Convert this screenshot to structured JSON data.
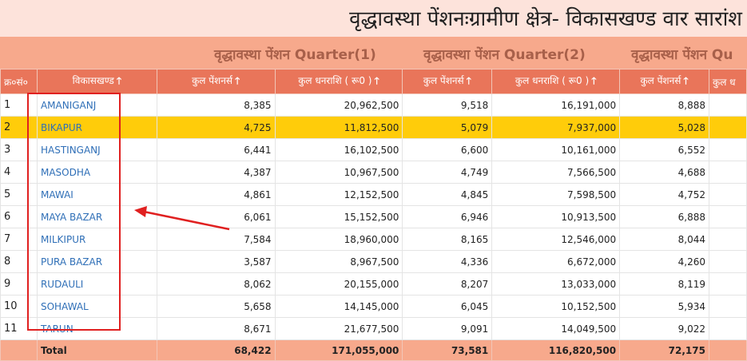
{
  "title": "वृद्धावस्था पेंशनःग्रामीण क्षेत्र- विकासखण्ड वार सारांश",
  "quarters": [
    "वृद्धावस्था पेंशन Quarter(1)",
    "वृद्धावस्था पेंशन Quarter(2)",
    "वृद्धावस्था पेंशन Qu"
  ],
  "headers": {
    "sn": "क्र०सं०",
    "block": "विकासखण्ड",
    "pensioners": "कुल पेंशनर्स",
    "amount": "कुल धनराशि ( रू0 )",
    "amount_cut": "कुल ध"
  },
  "icons": {
    "sort": "arrow-up-icon"
  },
  "rows": [
    {
      "sn": "1",
      "block": "AMANIGANJ",
      "q1p": "8,385",
      "q1a": "20,962,500",
      "q2p": "9,518",
      "q2a": "16,191,000",
      "q3p": "8,888"
    },
    {
      "sn": "2",
      "block": "BIKAPUR",
      "q1p": "4,725",
      "q1a": "11,812,500",
      "q2p": "5,079",
      "q2a": "7,937,000",
      "q3p": "5,028"
    },
    {
      "sn": "3",
      "block": "HASTINGANJ",
      "q1p": "6,441",
      "q1a": "16,102,500",
      "q2p": "6,600",
      "q2a": "10,161,000",
      "q3p": "6,552"
    },
    {
      "sn": "4",
      "block": "MASODHA",
      "q1p": "4,387",
      "q1a": "10,967,500",
      "q2p": "4,749",
      "q2a": "7,566,500",
      "q3p": "4,688"
    },
    {
      "sn": "5",
      "block": "MAWAI",
      "q1p": "4,861",
      "q1a": "12,152,500",
      "q2p": "4,845",
      "q2a": "7,598,500",
      "q3p": "4,752"
    },
    {
      "sn": "6",
      "block": "MAYA BAZAR",
      "q1p": "6,061",
      "q1a": "15,152,500",
      "q2p": "6,946",
      "q2a": "10,913,500",
      "q3p": "6,888"
    },
    {
      "sn": "7",
      "block": "MILKIPUR",
      "q1p": "7,584",
      "q1a": "18,960,000",
      "q2p": "8,165",
      "q2a": "12,546,000",
      "q3p": "8,044"
    },
    {
      "sn": "8",
      "block": "PURA BAZAR",
      "q1p": "3,587",
      "q1a": "8,967,500",
      "q2p": "4,336",
      "q2a": "6,672,000",
      "q3p": "4,260"
    },
    {
      "sn": "9",
      "block": "RUDAULI",
      "q1p": "8,062",
      "q1a": "20,155,000",
      "q2p": "8,207",
      "q2a": "13,033,000",
      "q3p": "8,119"
    },
    {
      "sn": "10",
      "block": "SOHAWAL",
      "q1p": "5,658",
      "q1a": "14,145,000",
      "q2p": "6,045",
      "q2a": "10,152,500",
      "q3p": "5,934"
    },
    {
      "sn": "11",
      "block": "TARUN",
      "q1p": "8,671",
      "q1a": "21,677,500",
      "q2p": "9,091",
      "q2a": "14,049,500",
      "q3p": "9,022"
    }
  ],
  "total": {
    "label": "Total",
    "q1p": "68,422",
    "q1a": "171,055,000",
    "q2p": "73,581",
    "q2a": "116,820,500",
    "q3p": "72,175"
  },
  "highlight_color": "#ffcc0a",
  "header_color": "#e9755a",
  "annotation_color": "#e02020"
}
